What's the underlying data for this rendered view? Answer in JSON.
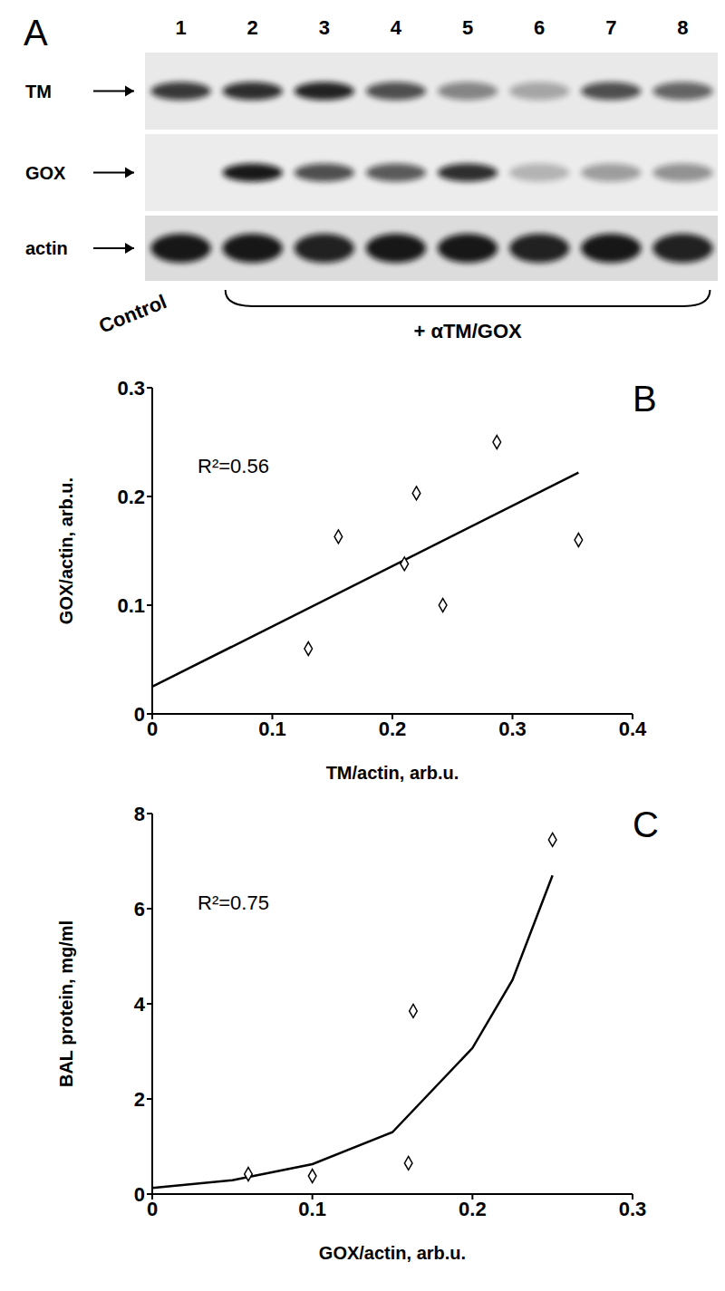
{
  "panel_a": {
    "panel": "A",
    "lanes": [
      1,
      2,
      3,
      4,
      5,
      6,
      7,
      8
    ],
    "rows": [
      {
        "name": "TM",
        "bands": [
          0.8,
          0.85,
          0.9,
          0.7,
          0.45,
          0.3,
          0.7,
          0.6
        ]
      },
      {
        "name": "GOX",
        "bands": [
          0,
          0.95,
          0.7,
          0.65,
          0.85,
          0.25,
          0.35,
          0.4
        ]
      },
      {
        "name": "actin",
        "bands": [
          0.95,
          0.95,
          0.9,
          0.95,
          0.95,
          0.9,
          0.95,
          0.9
        ]
      }
    ],
    "control_label": "Control",
    "treatment_label": "+ αTM/GOX"
  },
  "chart_data": [
    {
      "type": "scatter",
      "panel": "B",
      "x": [
        0.13,
        0.155,
        0.21,
        0.22,
        0.242,
        0.287,
        0.355
      ],
      "values": [
        0.06,
        0.163,
        0.138,
        0.203,
        0.1,
        0.25,
        0.16
      ],
      "marker": "diamond",
      "color": "#000000",
      "trend_line": {
        "x": [
          0,
          0.355
        ],
        "values": [
          0.025,
          0.222
        ]
      },
      "annotation": "R²=0.56",
      "x_label": "TM/actin, arb.u.",
      "y_label": "GOX/actin, arb.u.",
      "xlim": [
        0,
        0.4
      ],
      "xticks": [
        0,
        0.1,
        0.2,
        0.3,
        0.4
      ],
      "ylim": [
        0,
        0.3
      ],
      "yticks": [
        0,
        0.1,
        0.2,
        0.3
      ]
    },
    {
      "type": "scatter",
      "panel": "C",
      "x": [
        0.06,
        0.1,
        0.16,
        0.163,
        0.25
      ],
      "values": [
        0.42,
        0.38,
        0.65,
        3.85,
        7.45
      ],
      "marker": "diamond",
      "color": "#000000",
      "trend_line": {
        "x": [
          0,
          0.05,
          0.1,
          0.15,
          0.2,
          0.225,
          0.25
        ],
        "values": [
          0.13,
          0.29,
          0.63,
          1.3,
          3.07,
          4.5,
          6.7
        ]
      },
      "annotation": "R²=0.75",
      "x_label": "GOX/actin, arb.u.",
      "y_label": "BAL protein, mg/ml",
      "xlim": [
        0,
        0.3
      ],
      "xticks": [
        0,
        0.1,
        0.2,
        0.3
      ],
      "ylim": [
        0,
        8
      ],
      "yticks": [
        0,
        2,
        4,
        6,
        8
      ]
    }
  ]
}
